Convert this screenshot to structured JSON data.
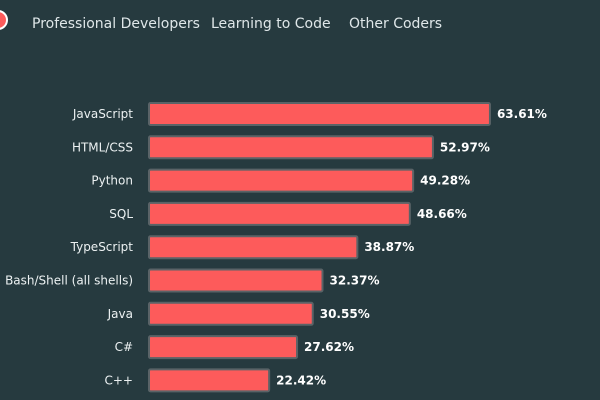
{
  "tabs": [
    {
      "label": "Professional Developers"
    },
    {
      "label": "Learning to Code"
    },
    {
      "label": "Other Coders"
    }
  ],
  "colors": {
    "background": "#263a3f",
    "bar": "#fd5b5b",
    "bar_border": "#5a6367",
    "text": "#ecf1f2"
  },
  "chart_data": {
    "type": "bar",
    "orientation": "horizontal",
    "categories": [
      "JavaScript",
      "HTML/CSS",
      "Python",
      "SQL",
      "TypeScript",
      "Bash/Shell (all shells)",
      "Java",
      "C#",
      "C++"
    ],
    "values": [
      63.61,
      52.97,
      49.28,
      48.66,
      38.87,
      32.37,
      30.55,
      27.62,
      22.42
    ],
    "value_labels": [
      "63.61%",
      "52.97%",
      "49.28%",
      "48.66%",
      "38.87%",
      "32.37%",
      "30.55%",
      "27.62%",
      "22.42%"
    ],
    "title": "",
    "xlabel": "",
    "ylabel": "",
    "unit": "%",
    "grid": false,
    "legend": "none"
  }
}
